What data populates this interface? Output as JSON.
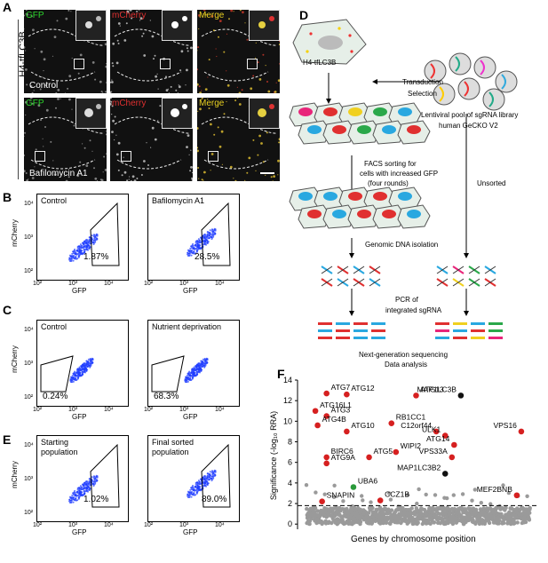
{
  "panels": {
    "a": {
      "label": "A",
      "row_label": "H4-tfLC3B",
      "channels": [
        "GFP",
        "mCherry",
        "Merge"
      ],
      "conditions": [
        "Control",
        "Bafilomycin A1"
      ]
    },
    "b": {
      "label": "B",
      "plots": [
        {
          "title": "Control",
          "pct": "1.87%"
        },
        {
          "title": "Bafilomycin A1",
          "pct": "28.5%"
        }
      ]
    },
    "c": {
      "label": "C",
      "plots": [
        {
          "title": "Control",
          "pct": "0.24%"
        },
        {
          "title": "Nutrient deprivation",
          "pct": "68.3%"
        }
      ]
    },
    "e": {
      "label": "E",
      "plots": [
        {
          "title": "Starting\npopulation",
          "pct": "1.02%"
        },
        {
          "title": "Final sorted\npopulation",
          "pct": "89.0%"
        }
      ]
    },
    "flow_axes": {
      "ylabel": "mCherry",
      "xlabel": "GFP",
      "ticks": [
        "10²",
        "10³",
        "10⁴"
      ],
      "yticks": [
        "10⁴",
        "10³",
        "10²"
      ]
    },
    "d": {
      "label": "D",
      "cell_label": "H4-tfLC3B",
      "transduction": "Transduction",
      "selection": "Selection",
      "library": "Lentiviral pool of sgRNA library",
      "library2": "human GeCKO V2",
      "facs1": "FACS sorting for",
      "facs2": "cells with increased GFP",
      "facs3": "(four rounds)",
      "unsorted": "Unsorted",
      "gdna": "Genomic DNA isolation",
      "pcr1": "PCR of",
      "pcr2": "integrated sgRNA",
      "ngs1": "Next-generation sequencing",
      "ngs2": "Data analysis"
    },
    "f": {
      "label": "F"
    }
  },
  "chart_data": {
    "type": "scatter",
    "xlabel": "Genes by chromosome position",
    "ylabel": "Significance (-log₁₀ RRA)",
    "ylim": [
      -0.5,
      14
    ],
    "yticks": [
      0,
      2,
      4,
      6,
      8,
      10,
      12,
      14
    ],
    "threshold": 1.8,
    "points": [
      {
        "gene": "ATG7",
        "x": 0.09,
        "y": 12.7,
        "color": "#d62020"
      },
      {
        "gene": "ATG12",
        "x": 0.18,
        "y": 12.6,
        "color": "#d62020"
      },
      {
        "gene": "ATG13",
        "x": 0.49,
        "y": 12.5,
        "color": "#d62020"
      },
      {
        "gene": "MAP1LC3B",
        "x": 0.69,
        "y": 12.5,
        "color": "#111111"
      },
      {
        "gene": "ATG16L1",
        "x": 0.04,
        "y": 11.0,
        "color": "#d62020"
      },
      {
        "gene": "ATG3",
        "x": 0.09,
        "y": 10.5,
        "color": "#d62020"
      },
      {
        "gene": "ATG4B",
        "x": 0.05,
        "y": 9.6,
        "color": "#d62020"
      },
      {
        "gene": "ATG10",
        "x": 0.18,
        "y": 9.0,
        "color": "#d62020"
      },
      {
        "gene": "RB1CC1",
        "x": 0.38,
        "y": 9.8,
        "color": "#d62020"
      },
      {
        "gene": "C12orf44",
        "x": 0.58,
        "y": 9.0,
        "color": "#d62020"
      },
      {
        "gene": "ULK1",
        "x": 0.62,
        "y": 8.6,
        "color": "#d62020"
      },
      {
        "gene": "ATG14",
        "x": 0.66,
        "y": 7.7,
        "color": "#d62020"
      },
      {
        "gene": "VPS16",
        "x": 0.96,
        "y": 9.0,
        "color": "#d62020"
      },
      {
        "gene": "ATG5",
        "x": 0.28,
        "y": 6.5,
        "color": "#d62020"
      },
      {
        "gene": "WIPI2",
        "x": 0.4,
        "y": 7.0,
        "color": "#d62020"
      },
      {
        "gene": "VPS33A",
        "x": 0.65,
        "y": 6.5,
        "color": "#d62020"
      },
      {
        "gene": "BIRC6",
        "x": 0.09,
        "y": 6.5,
        "color": "#d62020"
      },
      {
        "gene": "ATG9A",
        "x": 0.09,
        "y": 5.9,
        "color": "#d62020"
      },
      {
        "gene": "MAP1LC3B2",
        "x": 0.62,
        "y": 4.9,
        "color": "#111111"
      },
      {
        "gene": "UBA6",
        "x": 0.21,
        "y": 3.6,
        "color": "#2a9a3a"
      },
      {
        "gene": "SNAPIN",
        "x": 0.07,
        "y": 2.2,
        "color": "#d62020"
      },
      {
        "gene": "CCZ1B",
        "x": 0.33,
        "y": 2.3,
        "color": "#d62020"
      },
      {
        "gene": "MEF2BNB",
        "x": 0.94,
        "y": 2.8,
        "color": "#d62020"
      }
    ]
  }
}
